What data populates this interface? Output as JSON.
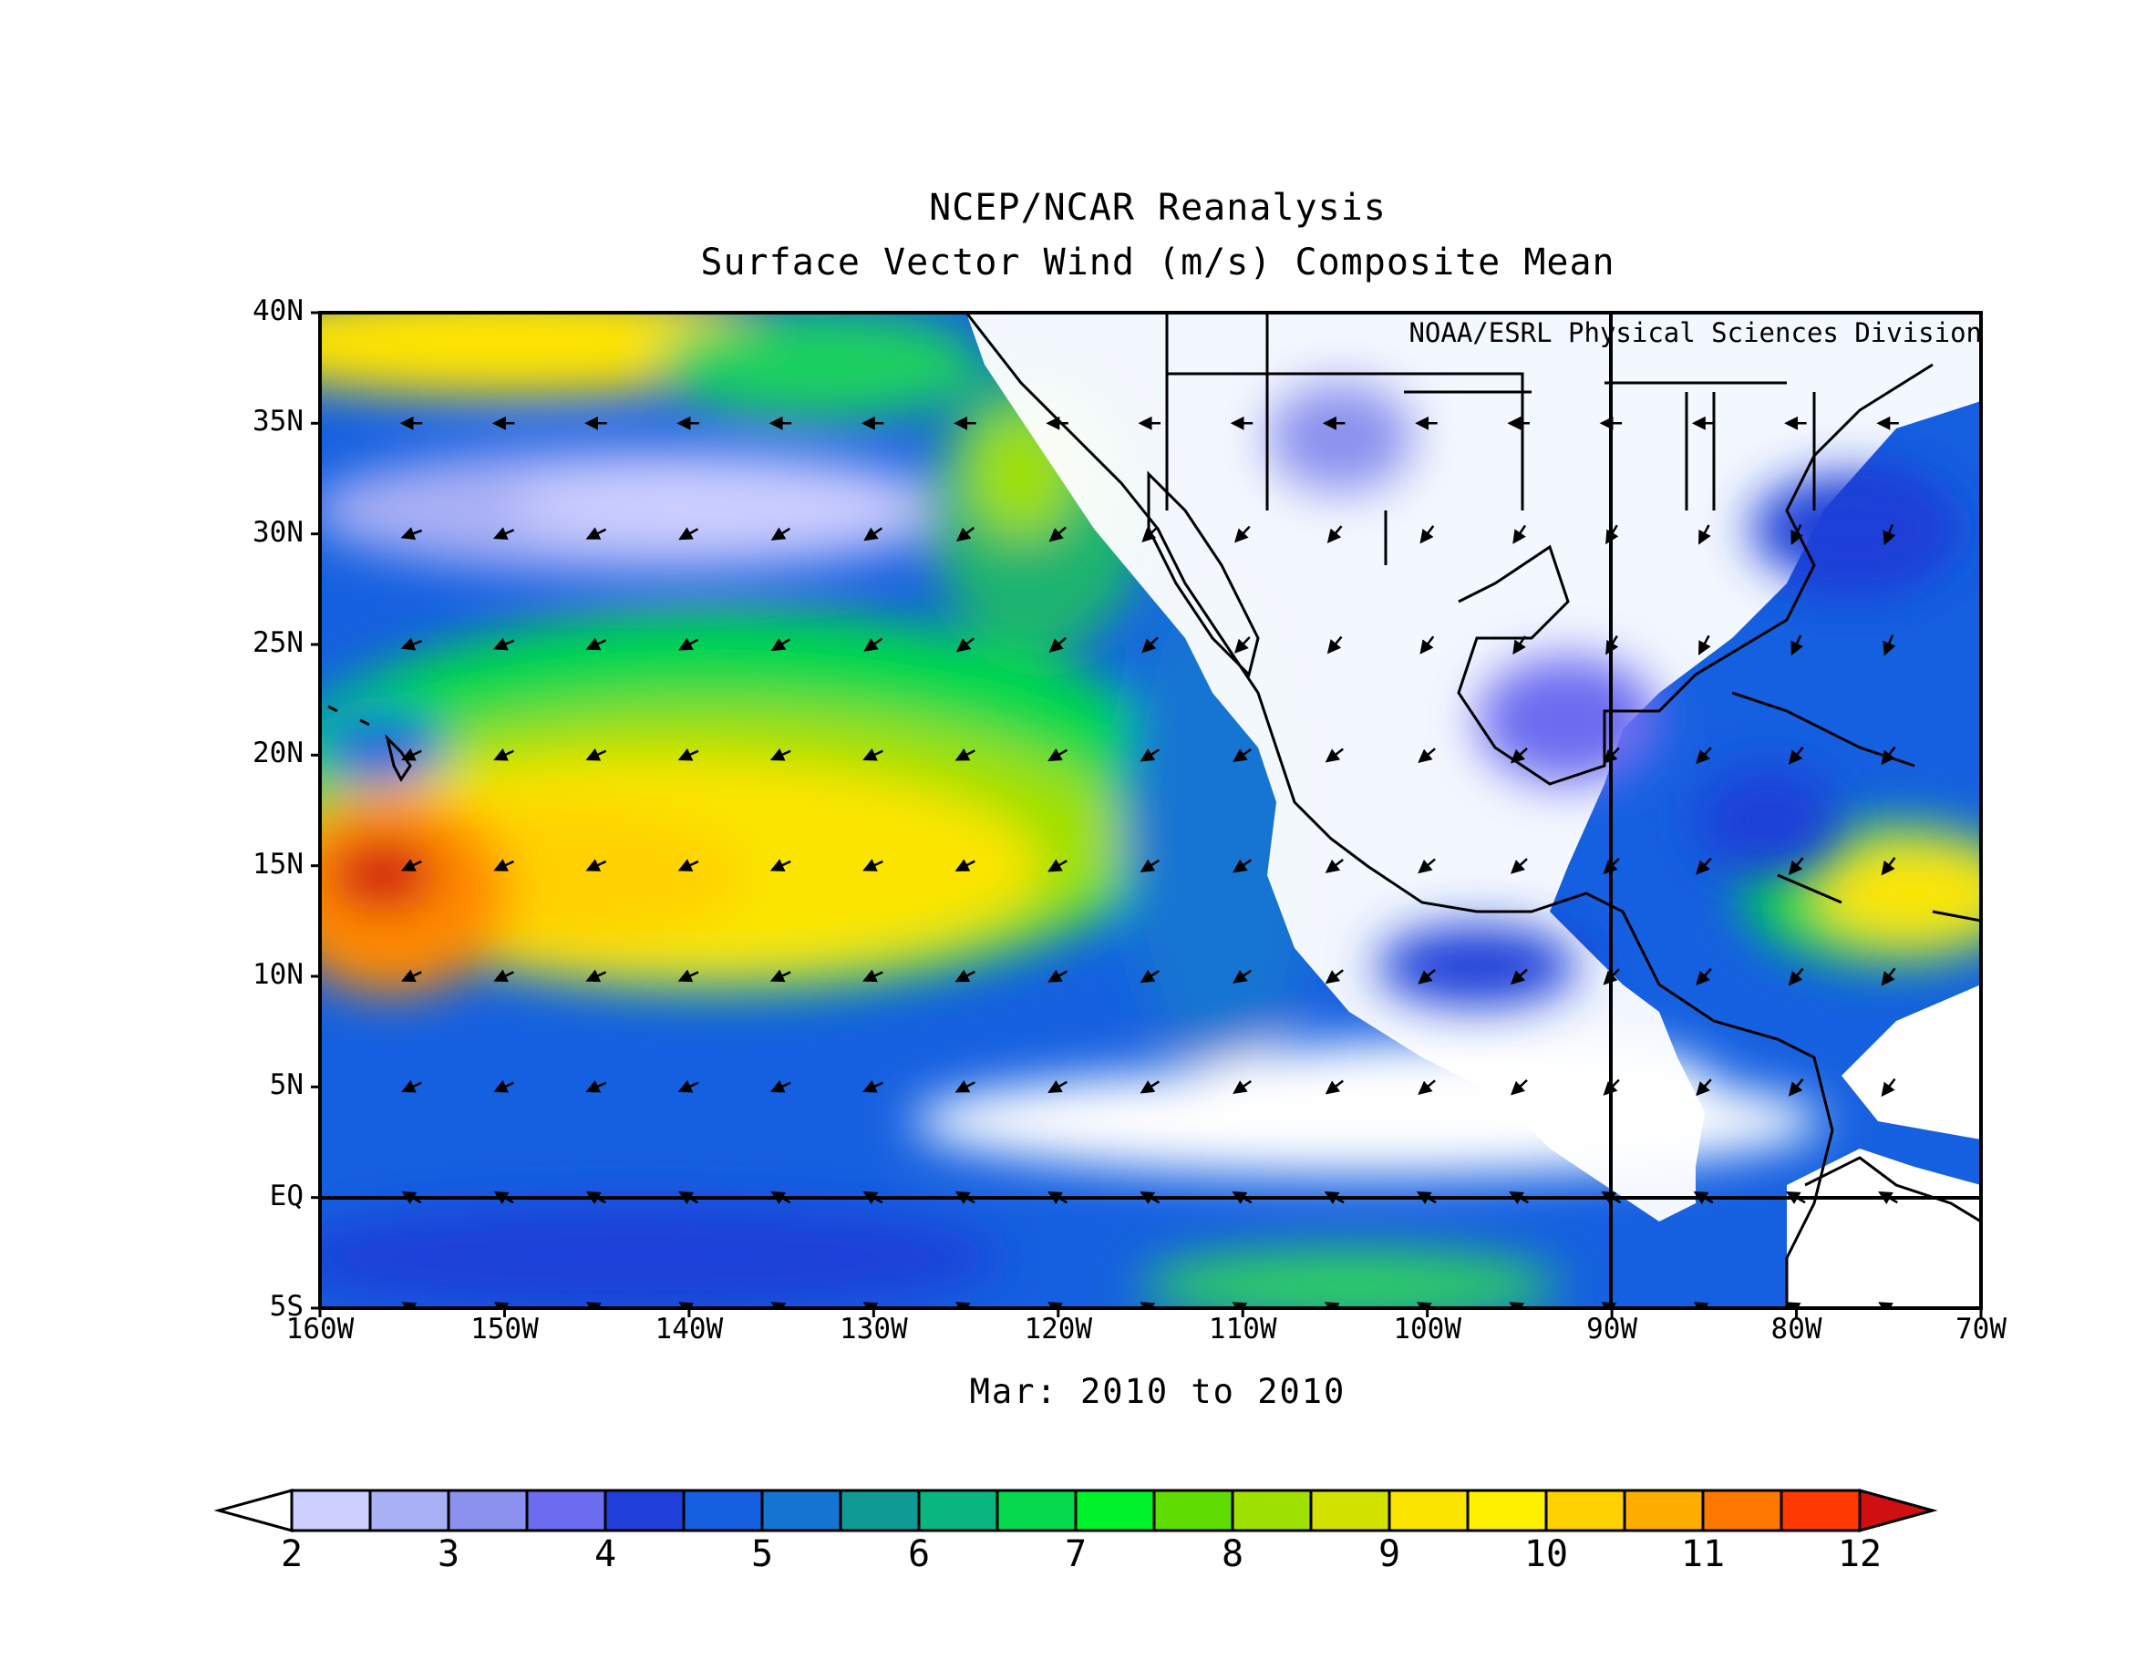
{
  "title": "NCEP/NCAR Reanalysis",
  "subtitle": "Surface Vector Wind (m/s) Composite Mean",
  "credit": "NOAA/ESRL Physical Sciences Division",
  "period": "Mar: 2010 to 2010",
  "lat_labels": [
    "40N",
    "35N",
    "30N",
    "25N",
    "20N",
    "15N",
    "10N",
    "5N",
    "EQ",
    "5S"
  ],
  "lon_labels": [
    "160W",
    "150W",
    "140W",
    "130W",
    "120W",
    "110W",
    "100W",
    "90W",
    "80W",
    "70W"
  ],
  "colorbar": {
    "labels": [
      "2",
      "3",
      "4",
      "5",
      "6",
      "7",
      "8",
      "9",
      "10",
      "11",
      "12"
    ],
    "colors": [
      "#ffffff",
      "#cccfff",
      "#aab0f5",
      "#8a91ee",
      "#6b6cf0",
      "#1f3fd8",
      "#1560e0",
      "#1474d2",
      "#0f9a96",
      "#0bb580",
      "#06d84e",
      "#00f22a",
      "#5fdc00",
      "#9ee000",
      "#d4e200",
      "#fbe500",
      "#fff000",
      "#ffd100",
      "#ffad00",
      "#ff7800",
      "#ff3a00",
      "#d01010"
    ]
  },
  "chart_data": {
    "type": "heatmap",
    "title": "NCEP/NCAR Reanalysis",
    "subtitle": "Surface Vector Wind (m/s) Composite Mean",
    "units": "m/s",
    "xlim": [
      -160,
      -70
    ],
    "ylim": [
      -5,
      40
    ],
    "x_ticks": [
      "160W",
      "150W",
      "140W",
      "130W",
      "120W",
      "110W",
      "100W",
      "90W",
      "80W",
      "70W"
    ],
    "y_ticks": [
      "40N",
      "35N",
      "30N",
      "25N",
      "20N",
      "15N",
      "10N",
      "5N",
      "EQ",
      "5S"
    ],
    "color_levels": [
      2,
      2.5,
      3,
      3.5,
      4,
      4.5,
      5,
      5.5,
      6,
      6.5,
      7,
      7.5,
      8,
      8.5,
      9,
      9.5,
      10,
      10.5,
      11,
      11.5,
      12
    ],
    "speed_grid": {
      "lons": [
        -160,
        -150,
        -140,
        -130,
        -120,
        -110,
        -100,
        -90,
        -80,
        -70
      ],
      "lats": [
        40,
        35,
        30,
        25,
        20,
        15,
        10,
        5,
        0,
        -5
      ],
      "values": [
        [
          9.5,
          8.5,
          8.0,
          7.0,
          4.5,
          1.5,
          1.5,
          1.5,
          1.5,
          1.5
        ],
        [
          5.0,
          4.0,
          3.5,
          3.0,
          6.0,
          1.5,
          3.0,
          1.5,
          1.5,
          4.0
        ],
        [
          4.0,
          3.0,
          2.8,
          3.5,
          6.5,
          3.5,
          4.0,
          1.5,
          4.0,
          4.5
        ],
        [
          8.0,
          8.5,
          8.0,
          7.0,
          7.0,
          4.5,
          1.8,
          4.0,
          1.8,
          3.0
        ],
        [
          6.0,
          9.0,
          9.5,
          9.5,
          8.5,
          6.0,
          2.0,
          3.5,
          5.5,
          8.5
        ],
        [
          11.5,
          10.5,
          10.0,
          9.5,
          8.5,
          6.5,
          3.5,
          1.5,
          6.5,
          10.0
        ],
        [
          10.0,
          9.5,
          9.0,
          8.5,
          7.5,
          5.5,
          5.0,
          4.0,
          4.5,
          5.5
        ],
        [
          8.0,
          7.0,
          6.5,
          6.0,
          4.0,
          1.5,
          1.5,
          1.5,
          2.5,
          1.5
        ],
        [
          5.5,
          5.0,
          4.5,
          4.0,
          4.0,
          4.0,
          3.5,
          3.0,
          2.0,
          1.5
        ],
        [
          5.0,
          5.0,
          4.5,
          4.0,
          4.5,
          6.5,
          5.5,
          3.5,
          3.0,
          1.5
        ]
      ]
    },
    "legend": "colorbar-bottom",
    "grid": false
  }
}
